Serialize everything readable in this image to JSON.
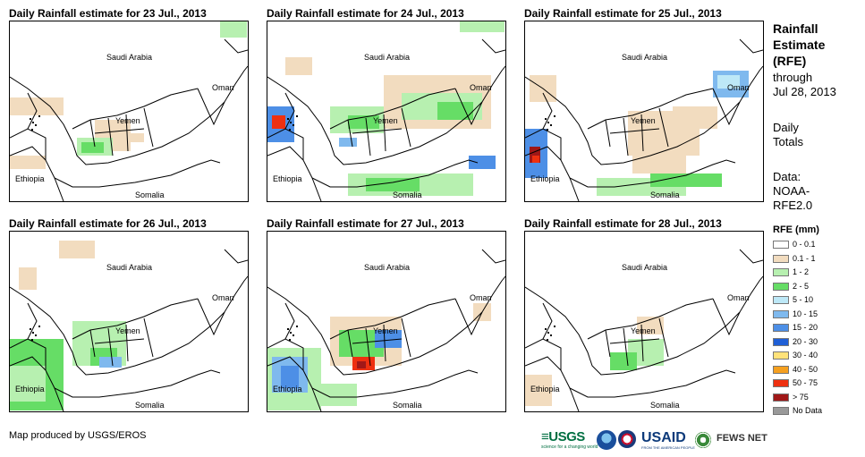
{
  "panels": [
    {
      "title": "Daily Rainfall estimate for 23 Jul., 2013",
      "variant": 0
    },
    {
      "title": "Daily Rainfall estimate for 24 Jul., 2013",
      "variant": 1
    },
    {
      "title": "Daily Rainfall estimate for 25 Jul., 2013",
      "variant": 2
    },
    {
      "title": "Daily Rainfall estimate for 26 Jul., 2013",
      "variant": 3
    },
    {
      "title": "Daily Rainfall estimate for 27 Jul., 2013",
      "variant": 4
    },
    {
      "title": "Daily Rainfall estimate for 28 Jul., 2013",
      "variant": 5
    }
  ],
  "map_labels": {
    "saudi": "Saudi Arabia",
    "oman": "Oman",
    "yemen": "Yemen",
    "ethiopia": "Ethiopia",
    "somalia": "Somalia"
  },
  "sidebar": {
    "title_line1": "Rainfall",
    "title_line2": "Estimate",
    "title_line3": "(RFE)",
    "through": "through",
    "date": "Jul 28, 2013",
    "daily1": "Daily",
    "daily2": "Totals",
    "data1": "Data:",
    "data2": "NOAA-",
    "data3": "RFE2.0"
  },
  "legend": {
    "title": "RFE (mm)",
    "items": [
      {
        "label": "0 - 0.1",
        "color": "#ffffff"
      },
      {
        "label": "0.1 - 1",
        "color": "#f2dcbf"
      },
      {
        "label": "1 - 2",
        "color": "#b7f0b0"
      },
      {
        "label": "2 - 5",
        "color": "#66dd66"
      },
      {
        "label": "5 - 10",
        "color": "#bde8f7"
      },
      {
        "label": "10 - 15",
        "color": "#7fb9ee"
      },
      {
        "label": "15 - 20",
        "color": "#4d8fe6"
      },
      {
        "label": "20 - 30",
        "color": "#1f5fd6"
      },
      {
        "label": "30 - 40",
        "color": "#ffe27a"
      },
      {
        "label": "40 - 50",
        "color": "#f5a020"
      },
      {
        "label": "50 - 75",
        "color": "#ee3010"
      },
      {
        "label": "> 75",
        "color": "#a01818"
      },
      {
        "label": "No Data",
        "color": "#999999"
      }
    ]
  },
  "footer": "Map produced by USGS/EROS",
  "logos": {
    "usgs": "≡USGS",
    "usgs_sub": "science for a changing world",
    "usaid": "USAID",
    "usaid_sub": "FROM THE AMERICAN PEOPLE",
    "fews": "FEWS NET"
  }
}
